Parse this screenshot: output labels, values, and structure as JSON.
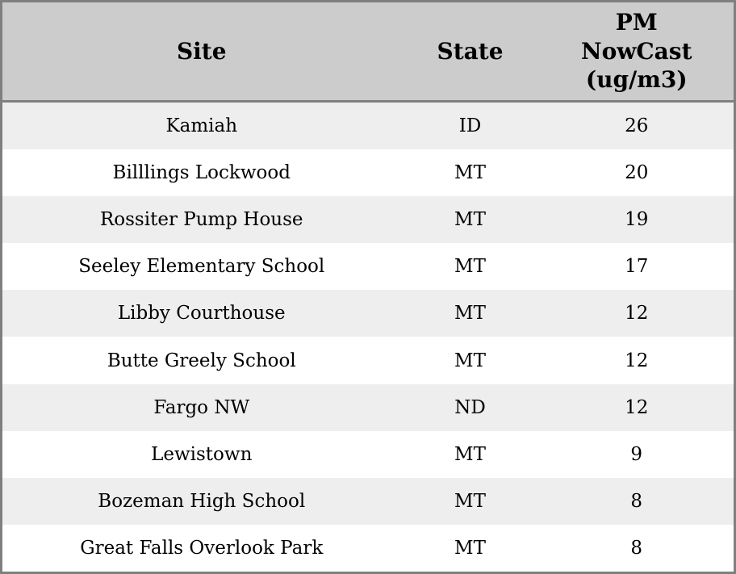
{
  "colors": {
    "header_bg": "#cccccc",
    "stripe_bg": "#eeeeee",
    "row_bg": "#ffffff",
    "border": "#7f7f7f",
    "text": "#000000"
  },
  "chart_data": {
    "type": "table",
    "title": "",
    "columns": [
      "Site",
      "State",
      "PM NowCast (ug/m3)"
    ],
    "rows": [
      {
        "site": "Kamiah",
        "state": "ID",
        "pm_nowcast": "26"
      },
      {
        "site": "Billlings Lockwood",
        "state": "MT",
        "pm_nowcast": "20"
      },
      {
        "site": "Rossiter Pump House",
        "state": "MT",
        "pm_nowcast": "19"
      },
      {
        "site": "Seeley Elementary School",
        "state": "MT",
        "pm_nowcast": "17"
      },
      {
        "site": "Libby Courthouse",
        "state": "MT",
        "pm_nowcast": "12"
      },
      {
        "site": "Butte Greely School",
        "state": "MT",
        "pm_nowcast": "12"
      },
      {
        "site": "Fargo NW",
        "state": "ND",
        "pm_nowcast": "12"
      },
      {
        "site": "Lewistown",
        "state": "MT",
        "pm_nowcast": "9"
      },
      {
        "site": "Bozeman High School",
        "state": "MT",
        "pm_nowcast": "8"
      },
      {
        "site": "Great Falls Overlook Park",
        "state": "MT",
        "pm_nowcast": "8"
      }
    ]
  }
}
